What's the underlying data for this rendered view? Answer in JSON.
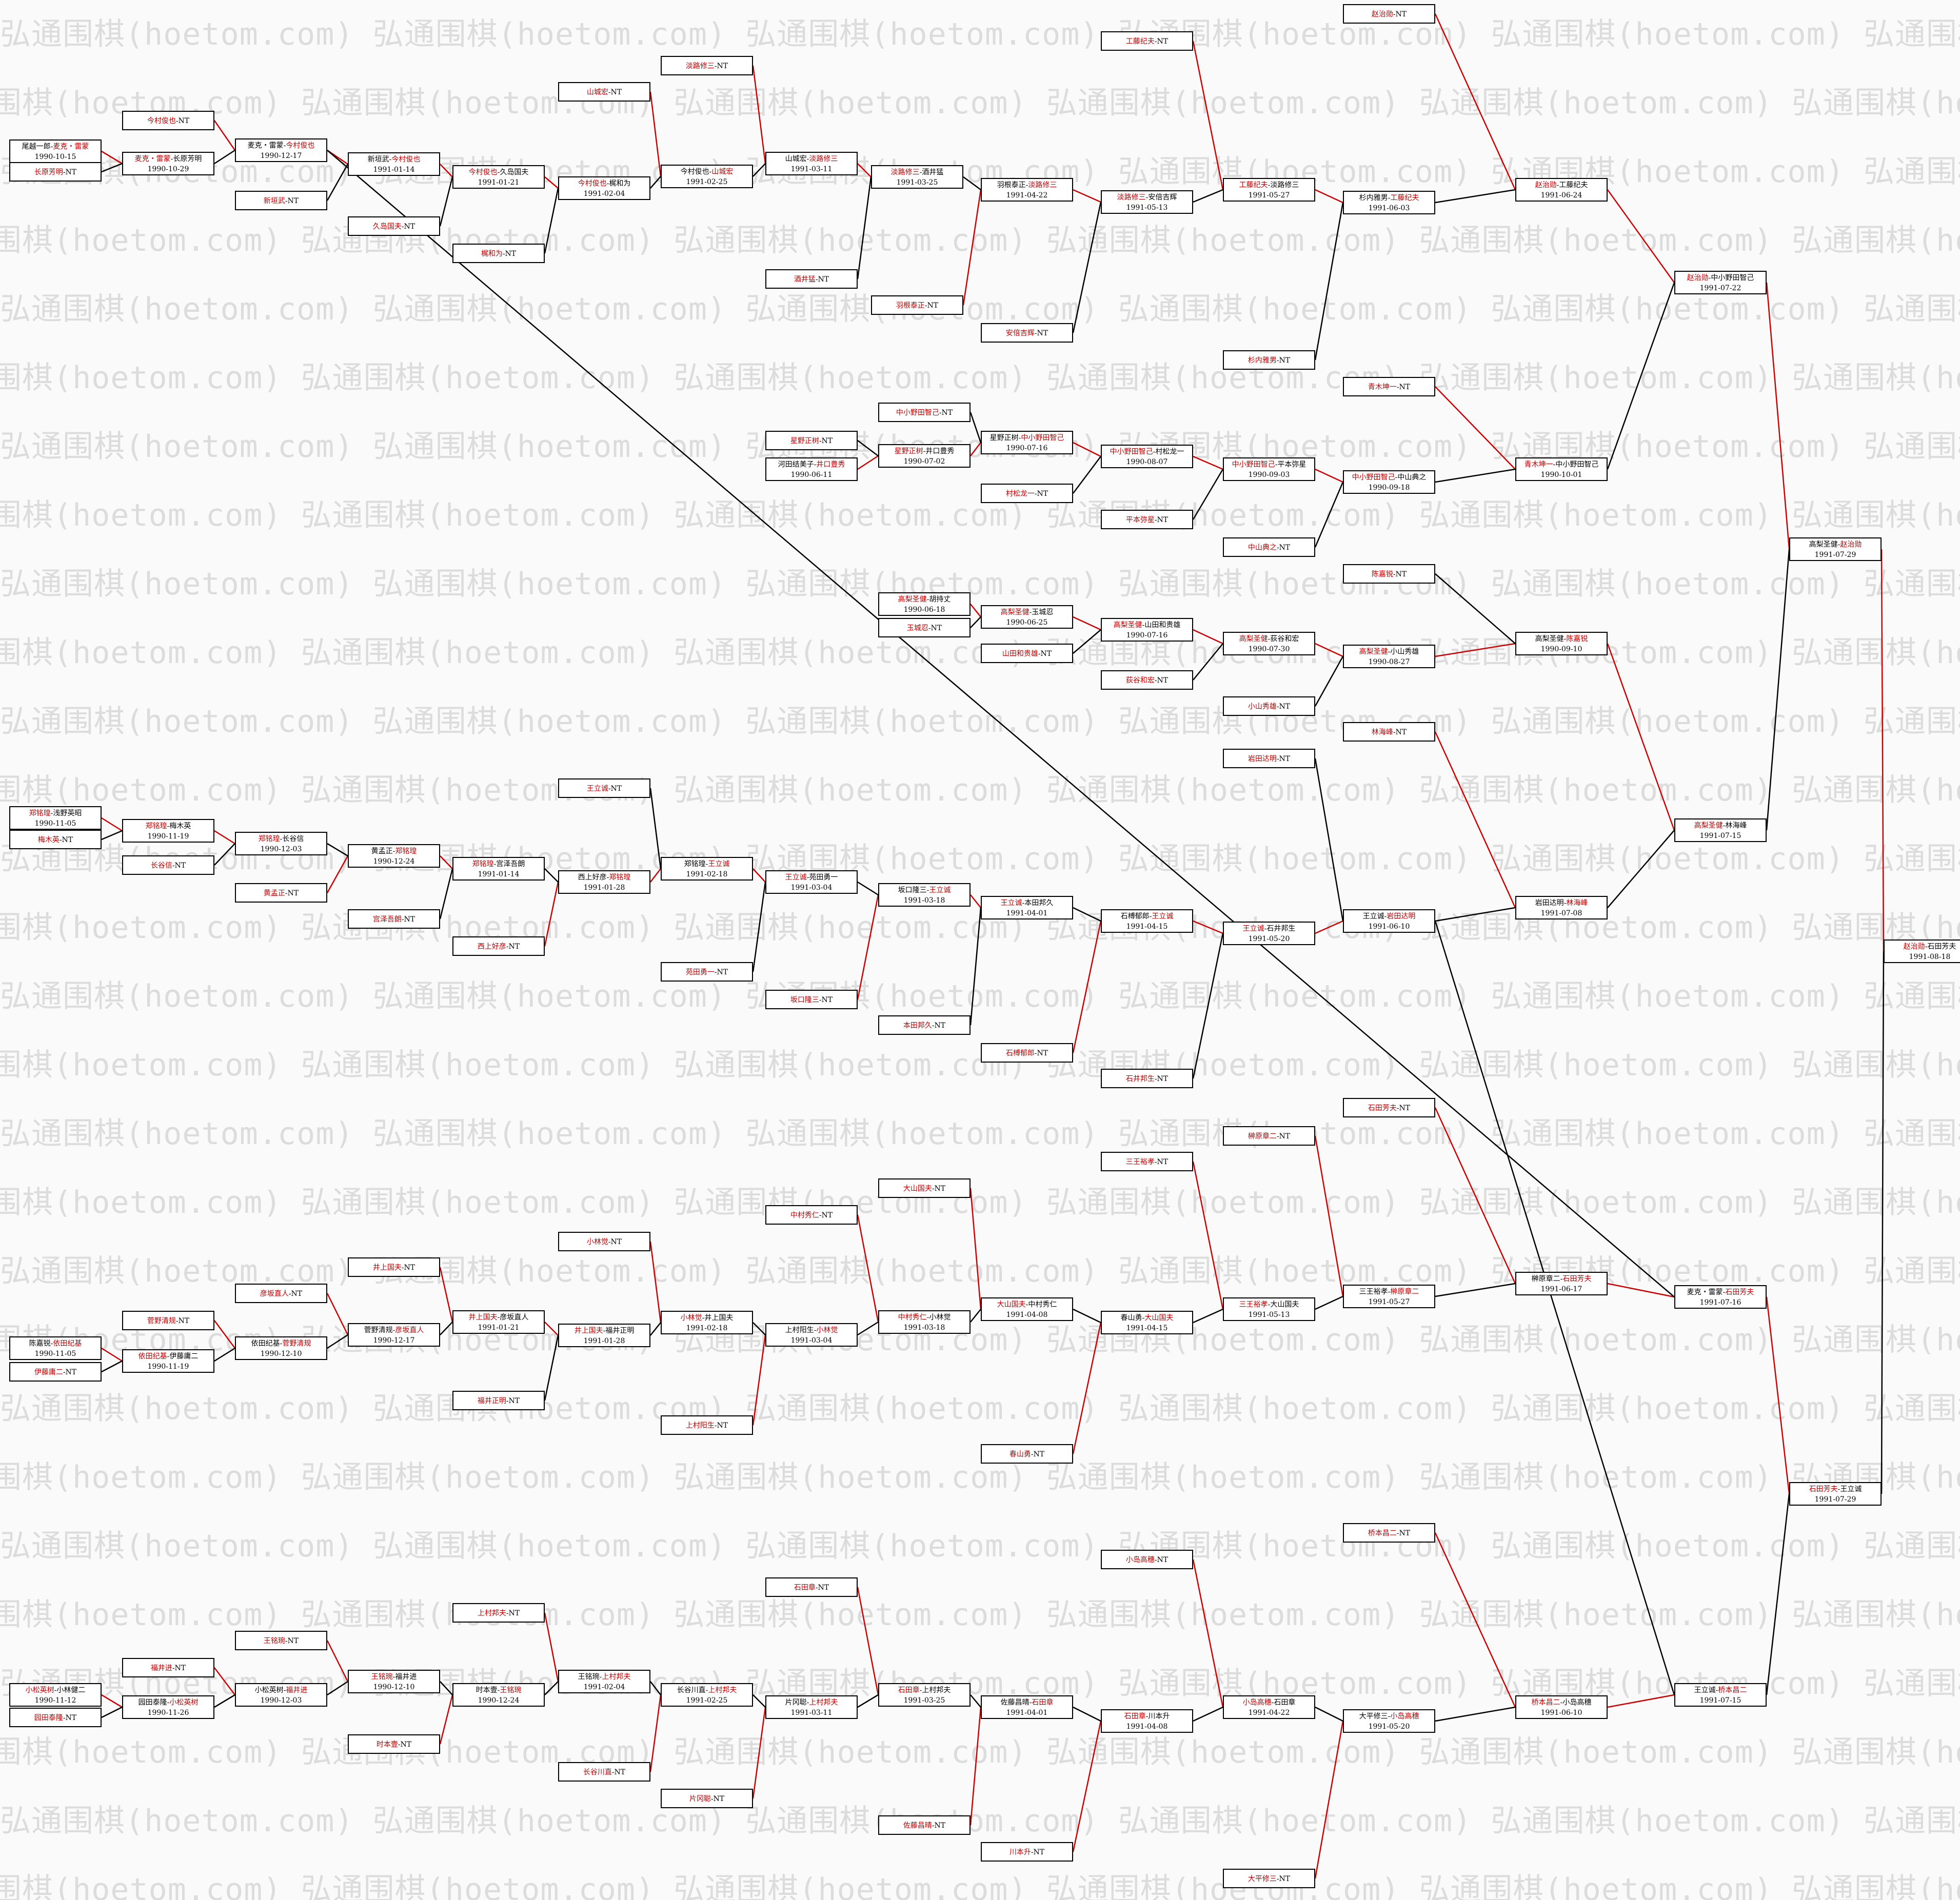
{
  "watermark": "弘通围棋(hoetom.com)",
  "colors": {
    "winner": "#c00000",
    "line_red": "#cc0000",
    "line_black": "#000000",
    "text": "#000000"
  },
  "nodes": [
    {
      "id": "A",
      "p": "尾越一郎",
      "w": "麦克・雷蒙",
      "win": 2,
      "d": "1990-10-15"
    },
    {
      "id": "A1",
      "leaf": "长原芳明",
      "win": 1
    },
    {
      "id": "B",
      "p": "麦克・雷蒙",
      "w": "长原芳明",
      "win": 1,
      "d": "1990-10-29"
    },
    {
      "id": "B1",
      "leaf": "今村俊也",
      "win": 1
    },
    {
      "id": "C",
      "p": "麦克・雷蒙",
      "w": "今村俊也",
      "win": 2,
      "d": "1990-12-17"
    },
    {
      "id": "C1",
      "leaf": "新垣武",
      "win": 1
    },
    {
      "id": "D",
      "p": "新垣武",
      "w": "今村俊也",
      "win": 2,
      "d": "1991-01-14"
    },
    {
      "id": "D1",
      "leaf": "久岛国夫",
      "win": 1
    },
    {
      "id": "E",
      "p": "今村俊也",
      "w": "久岛国夫",
      "win": 1,
      "d": "1991-01-21"
    },
    {
      "id": "E1",
      "leaf": "梶和为",
      "win": 1
    },
    {
      "id": "F",
      "p": "今村俊也",
      "w": "梶和为",
      "win": 1,
      "d": "1991-02-04"
    },
    {
      "id": "F1",
      "leaf": "山城宏",
      "win": 1
    },
    {
      "id": "G",
      "p": "今村俊也",
      "w": "山城宏",
      "win": 2,
      "d": "1991-02-25"
    },
    {
      "id": "G1",
      "leaf": "淡路修三",
      "win": 1
    },
    {
      "id": "H",
      "p": "山城宏",
      "w": "淡路修三",
      "win": 2,
      "d": "1991-03-11"
    },
    {
      "id": "H1",
      "leaf": "酒井猛",
      "win": 1
    },
    {
      "id": "I",
      "p": "淡路修三",
      "w": "酒井猛",
      "win": 1,
      "d": "1991-03-25"
    },
    {
      "id": "I1",
      "leaf": "羽根泰正",
      "win": 1
    },
    {
      "id": "J",
      "p": "羽根泰正",
      "w": "淡路修三",
      "win": 2,
      "d": "1991-04-22"
    },
    {
      "id": "J1",
      "leaf": "安倍吉辉",
      "win": 1
    },
    {
      "id": "K",
      "p": "淡路修三",
      "w": "安倍吉辉",
      "win": 1,
      "d": "1991-05-13"
    },
    {
      "id": "K1",
      "leaf": "工藤纪夫",
      "win": 1
    },
    {
      "id": "L",
      "p": "工藤纪夫",
      "w": "淡路修三",
      "win": 1,
      "d": "1991-05-27"
    },
    {
      "id": "L1",
      "leaf": "杉内雅男",
      "win": 1
    },
    {
      "id": "M",
      "p": "杉内雅男",
      "w": "工藤纪夫",
      "win": 2,
      "d": "1991-06-03"
    },
    {
      "id": "M1",
      "leaf": "赵治勋",
      "win": 1
    },
    {
      "id": "N",
      "p": "赵治勋",
      "w": "工藤纪夫",
      "win": 1,
      "d": "1991-06-24"
    },
    {
      "id": "Q1",
      "leaf": "中小野田智己",
      "win": 1
    },
    {
      "id": "Q2",
      "leaf": "星野正树",
      "win": 1
    },
    {
      "id": "Q3",
      "p": "河田结美子",
      "w": "井口豊秀",
      "win": 2,
      "d": "1990-06-11"
    },
    {
      "id": "Q4",
      "p": "星野正树",
      "w": "井口豊秀",
      "win": 1,
      "d": "1990-07-02"
    },
    {
      "id": "Q5",
      "p": "星野正树",
      "w": "中小野田智己",
      "win": 2,
      "d": "1990-07-16"
    },
    {
      "id": "Q6",
      "leaf": "村松龙一",
      "win": 1
    },
    {
      "id": "Q7",
      "p": "中小野田智己",
      "w": "村松龙一",
      "win": 1,
      "d": "1990-08-07"
    },
    {
      "id": "Q8",
      "leaf": "平本弥星",
      "win": 1
    },
    {
      "id": "Q9",
      "p": "中小野田智己",
      "w": "平本弥星",
      "win": 1,
      "d": "1990-09-03"
    },
    {
      "id": "Q10",
      "leaf": "中山典之",
      "win": 1
    },
    {
      "id": "Q11",
      "p": "中小野田智己",
      "w": "中山典之",
      "win": 1,
      "d": "1990-09-18"
    },
    {
      "id": "Q12",
      "leaf": "青木坤一",
      "win": 1
    },
    {
      "id": "Q13",
      "p": "青木坤一",
      "w": "中小野田智己",
      "win": 1,
      "d": "1990-10-01"
    },
    {
      "id": "O",
      "p": "赵治勋",
      "w": "中小野田智己",
      "win": 1,
      "d": "1991-07-22"
    },
    {
      "id": "R1",
      "p": "高梨圣健",
      "w": "胡持丈",
      "win": 1,
      "d": "1990-06-18"
    },
    {
      "id": "R2",
      "leaf": "玉城忍",
      "win": 1
    },
    {
      "id": "R3",
      "p": "高梨圣健",
      "w": "玉城忍",
      "win": 1,
      "d": "1990-06-25"
    },
    {
      "id": "R4",
      "leaf": "山田和贵雄",
      "win": 1
    },
    {
      "id": "R5",
      "p": "高梨圣健",
      "w": "山田和贵雄",
      "win": 1,
      "d": "1990-07-16"
    },
    {
      "id": "R6",
      "leaf": "荻谷和宏",
      "win": 1
    },
    {
      "id": "R7",
      "p": "高梨圣健",
      "w": "荻谷和宏",
      "win": 1,
      "d": "1990-07-30"
    },
    {
      "id": "R8",
      "leaf": "小山秀雄",
      "win": 1
    },
    {
      "id": "R9",
      "p": "高梨圣健",
      "w": "小山秀雄",
      "win": 1,
      "d": "1990-08-27"
    },
    {
      "id": "R10",
      "leaf": "陈嘉锐",
      "win": 1
    },
    {
      "id": "R11",
      "p": "高梨圣健",
      "w": "陈嘉锐",
      "win": 2,
      "d": "1990-09-10"
    },
    {
      "id": "P1",
      "p": "郑铭瑝",
      "w": "浅野英昭",
      "win": 1,
      "d": "1990-11-05"
    },
    {
      "id": "P2",
      "leaf": "梅木英",
      "win": 1
    },
    {
      "id": "P3",
      "p": "郑铭瑝",
      "w": "梅木英",
      "win": 1,
      "d": "1990-11-19"
    },
    {
      "id": "P4",
      "leaf": "长谷信",
      "win": 1
    },
    {
      "id": "P5",
      "p": "郑铭瑝",
      "w": "长谷信",
      "win": 1,
      "d": "1990-12-03"
    },
    {
      "id": "P6",
      "leaf": "黄孟正",
      "win": 1
    },
    {
      "id": "P7",
      "p": "黄孟正",
      "w": "郑铭瑝",
      "win": 2,
      "d": "1990-12-24"
    },
    {
      "id": "P8",
      "leaf": "宫泽吾朗",
      "win": 1
    },
    {
      "id": "P9",
      "p": "郑铭瑝",
      "w": "宫泽吾朗",
      "win": 1,
      "d": "1991-01-14"
    },
    {
      "id": "P10",
      "leaf": "西上好彦",
      "win": 1
    },
    {
      "id": "P11",
      "p": "西上好彦",
      "w": "郑铭瑝",
      "win": 2,
      "d": "1991-01-28"
    },
    {
      "id": "P12",
      "leaf": "王立诚",
      "win": 1
    },
    {
      "id": "P13",
      "p": "郑铭瑝",
      "w": "王立诚",
      "win": 2,
      "d": "1991-02-18"
    },
    {
      "id": "P14",
      "leaf": "苑田勇一",
      "win": 1
    },
    {
      "id": "P15",
      "p": "王立诚",
      "w": "苑田勇一",
      "win": 1,
      "d": "1991-03-04"
    },
    {
      "id": "P16",
      "leaf": "坂口隆三",
      "win": 1
    },
    {
      "id": "P17",
      "p": "坂口隆三",
      "w": "王立诚",
      "win": 2,
      "d": "1991-03-18"
    },
    {
      "id": "P18",
      "leaf": "本田邦久",
      "win": 1
    },
    {
      "id": "P19",
      "p": "王立诚",
      "w": "本田邦久",
      "win": 1,
      "d": "1991-04-01"
    },
    {
      "id": "P20",
      "leaf": "石榑郁郎",
      "win": 1
    },
    {
      "id": "P21",
      "p": "石榑郁郎",
      "w": "王立诚",
      "win": 2,
      "d": "1991-04-15"
    },
    {
      "id": "P22",
      "leaf": "石井邦生",
      "win": 1
    },
    {
      "id": "P23",
      "p": "王立诚",
      "w": "石井邦生",
      "win": 1,
      "d": "1991-05-20"
    },
    {
      "id": "P24",
      "leaf": "岩田达明",
      "win": 1
    },
    {
      "id": "P25",
      "p": "王立诚",
      "w": "岩田达明",
      "win": 2,
      "d": "1991-06-10"
    },
    {
      "id": "P26",
      "leaf": "林海峰",
      "win": 1
    },
    {
      "id": "P27",
      "p": "岩田达明",
      "w": "林海峰",
      "win": 2,
      "d": "1991-07-08"
    },
    {
      "id": "P28",
      "p": "高梨圣健",
      "w": "林海峰",
      "win": 1,
      "d": "1991-07-15"
    },
    {
      "id": "S",
      "p": "高梨圣健",
      "w": "赵治勋",
      "win": 2,
      "d": "1991-07-29"
    },
    {
      "id": "T1",
      "p": "陈嘉锐",
      "w": "依田纪基",
      "win": 2,
      "d": "1990-11-05"
    },
    {
      "id": "T2",
      "leaf": "伊藤庸二",
      "win": 1
    },
    {
      "id": "T3",
      "p": "依田纪基",
      "w": "伊藤庸二",
      "win": 1,
      "d": "1990-11-19"
    },
    {
      "id": "T4",
      "leaf": "菅野清规",
      "win": 1
    },
    {
      "id": "T5",
      "p": "依田纪基",
      "w": "菅野清规",
      "win": 2,
      "d": "1990-12-10"
    },
    {
      "id": "T6",
      "leaf": "彦坂直人",
      "win": 1
    },
    {
      "id": "T7",
      "p": "菅野清规",
      "w": "彦坂直人",
      "win": 2,
      "d": "1990-12-17"
    },
    {
      "id": "T8",
      "leaf": "井上国夫",
      "win": 1
    },
    {
      "id": "T9",
      "p": "井上国夫",
      "w": "彦坂直人",
      "win": 1,
      "d": "1991-01-21"
    },
    {
      "id": "T10",
      "leaf": "福井正明",
      "win": 1
    },
    {
      "id": "T11",
      "p": "井上国夫",
      "w": "福井正明",
      "win": 1,
      "d": "1991-01-28"
    },
    {
      "id": "T12",
      "leaf": "小林觉",
      "win": 1
    },
    {
      "id": "T13",
      "p": "小林觉",
      "w": "井上国夫",
      "win": 1,
      "d": "1991-02-18"
    },
    {
      "id": "T14",
      "leaf": "上村阳生",
      "win": 1
    },
    {
      "id": "T15",
      "p": "上村阳生",
      "w": "小林觉",
      "win": 2,
      "d": "1991-03-04"
    },
    {
      "id": "T16",
      "leaf": "中村秀仁",
      "win": 1
    },
    {
      "id": "T17",
      "p": "中村秀仁",
      "w": "小林觉",
      "win": 1,
      "d": "1991-03-18"
    },
    {
      "id": "T18",
      "leaf": "大山国夫",
      "win": 1
    },
    {
      "id": "T19",
      "p": "大山国夫",
      "w": "中村秀仁",
      "win": 1,
      "d": "1991-04-08"
    },
    {
      "id": "T20",
      "leaf": "春山勇",
      "win": 1
    },
    {
      "id": "T21",
      "p": "春山勇",
      "w": "大山国夫",
      "win": 2,
      "d": "1991-04-15"
    },
    {
      "id": "T22",
      "leaf": "三王裕孝",
      "win": 1
    },
    {
      "id": "T23",
      "p": "三王裕孝",
      "w": "大山国夫",
      "win": 1,
      "d": "1991-05-13"
    },
    {
      "id": "T24",
      "leaf": "榊原章二",
      "win": 1
    },
    {
      "id": "T25",
      "p": "三王裕孝",
      "w": "榊原章二",
      "win": 2,
      "d": "1991-05-27"
    },
    {
      "id": "T26",
      "leaf": "石田芳夫",
      "win": 1
    },
    {
      "id": "T27",
      "p": "榊原章二",
      "w": "石田芳夫",
      "win": 2,
      "d": "1991-06-17"
    },
    {
      "id": "T28",
      "p": "麦克・雷蒙",
      "w": "石田芳夫",
      "win": 2,
      "d": "1991-07-16"
    },
    {
      "id": "U1",
      "p": "小松英树",
      "w": "小林健二",
      "win": 1,
      "d": "1990-11-12"
    },
    {
      "id": "U2",
      "leaf": "园田泰隆",
      "win": 1
    },
    {
      "id": "U3",
      "p": "园田泰隆",
      "w": "小松英树",
      "win": 2,
      "d": "1990-11-26"
    },
    {
      "id": "U4",
      "leaf": "福井进",
      "win": 1
    },
    {
      "id": "U5",
      "p": "小松英树",
      "w": "福井进",
      "win": 2,
      "d": "1990-12-03"
    },
    {
      "id": "U6",
      "leaf": "王铭琬",
      "win": 1
    },
    {
      "id": "U7",
      "p": "王铭琬",
      "w": "福井进",
      "win": 1,
      "d": "1990-12-10"
    },
    {
      "id": "U8",
      "leaf": "时本壹",
      "win": 1
    },
    {
      "id": "U9",
      "p": "时本壹",
      "w": "王铭琬",
      "win": 2,
      "d": "1990-12-24"
    },
    {
      "id": "U10",
      "leaf": "上村邦夫",
      "win": 1
    },
    {
      "id": "U11",
      "p": "王铭琬",
      "w": "上村邦夫",
      "win": 2,
      "d": "1991-02-04"
    },
    {
      "id": "U12",
      "leaf": "长谷川直",
      "win": 1
    },
    {
      "id": "U13",
      "p": "长谷川直",
      "w": "上村邦夫",
      "win": 2,
      "d": "1991-02-25"
    },
    {
      "id": "U14",
      "leaf": "片冈聪",
      "win": 1
    },
    {
      "id": "U15",
      "p": "片冈聪",
      "w": "上村邦夫",
      "win": 2,
      "d": "1991-03-11"
    },
    {
      "id": "U16",
      "leaf": "石田章",
      "win": 1
    },
    {
      "id": "U17",
      "p": "石田章",
      "w": "上村邦夫",
      "win": 1,
      "d": "1991-03-25"
    },
    {
      "id": "U18",
      "leaf": "佐藤昌晴",
      "win": 1
    },
    {
      "id": "U19",
      "p": "佐藤昌晴",
      "w": "石田章",
      "win": 2,
      "d": "1991-04-01"
    },
    {
      "id": "U20",
      "leaf": "川本升",
      "win": 1
    },
    {
      "id": "U21",
      "p": "石田章",
      "w": "川本升",
      "win": 1,
      "d": "1991-04-08"
    },
    {
      "id": "U22",
      "leaf": "小岛高穗",
      "win": 1
    },
    {
      "id": "U23",
      "p": "小岛高穗",
      "w": "石田章",
      "win": 1,
      "d": "1991-04-22"
    },
    {
      "id": "U24",
      "leaf": "大平修三",
      "win": 1
    },
    {
      "id": "U25",
      "p": "大平修三",
      "w": "小岛高穗",
      "win": 2,
      "d": "1991-05-20"
    },
    {
      "id": "U26",
      "leaf": "桥本昌二",
      "win": 1
    },
    {
      "id": "U27",
      "p": "桥本昌二",
      "w": "小岛高穗",
      "win": 1,
      "d": "1991-06-10"
    },
    {
      "id": "U28",
      "p": "王立诚",
      "w": "桥本昌二",
      "win": 2,
      "d": "1991-07-15"
    },
    {
      "id": "V",
      "p": "石田芳夫",
      "w": "王立诚",
      "win": 1,
      "d": "1991-07-29"
    },
    {
      "id": "W",
      "p": "赵治勋",
      "w": "石田芳夫",
      "win": 1,
      "d": "1991-08-18"
    }
  ]
}
